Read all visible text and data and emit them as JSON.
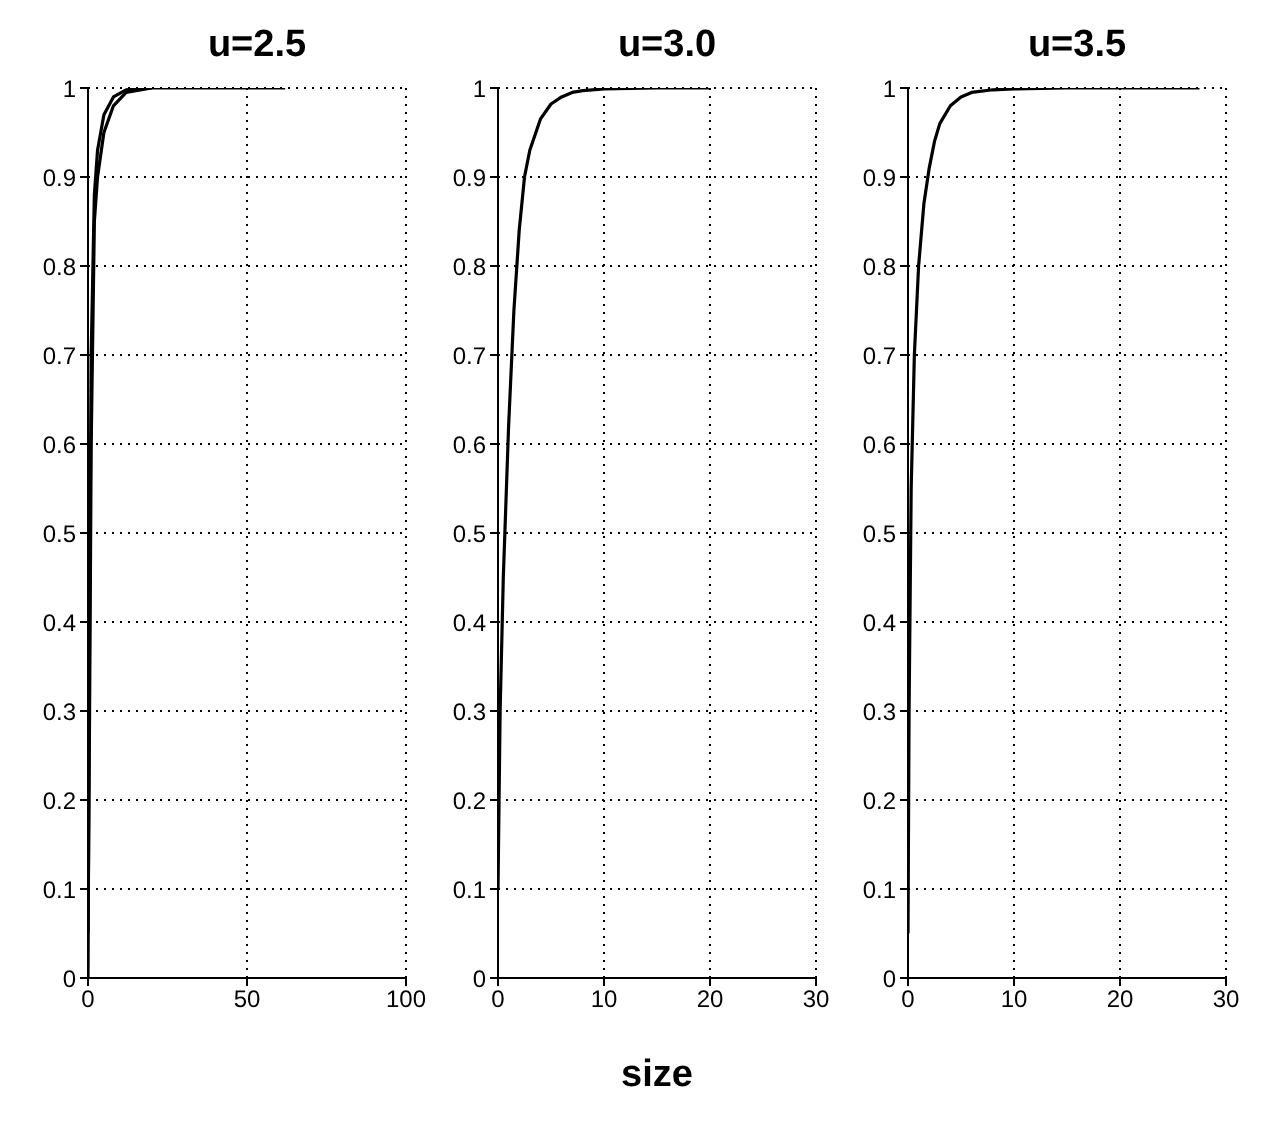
{
  "chart_data": [
    {
      "type": "line",
      "title": "u=2.5",
      "xlim": [
        0,
        100
      ],
      "xticks": [
        0,
        50,
        100
      ],
      "ylim": [
        0,
        1
      ],
      "yticks": [
        0,
        0.1,
        0.2,
        0.3,
        0.4,
        0.5,
        0.6,
        0.7,
        0.8,
        0.9,
        1
      ],
      "grid": true,
      "line_style": "solid",
      "series": [
        {
          "color": "#000000",
          "x": [
            0,
            0.5,
            1,
            2,
            3,
            5,
            8,
            12,
            20,
            62
          ],
          "values": [
            0,
            0.4,
            0.7,
            0.88,
            0.93,
            0.97,
            0.99,
            0.998,
            1,
            1
          ]
        },
        {
          "color": "#000000",
          "x": [
            0,
            0.5,
            1,
            2,
            3,
            5,
            8,
            12,
            20
          ],
          "values": [
            0.05,
            0.3,
            0.6,
            0.85,
            0.9,
            0.95,
            0.98,
            0.995,
            1
          ]
        }
      ]
    },
    {
      "type": "line",
      "title": "u=3.0",
      "xlabel": "size",
      "xlim": [
        0,
        30
      ],
      "xticks": [
        0,
        10,
        20,
        30
      ],
      "ylim": [
        0,
        1
      ],
      "yticks": [
        0,
        0.1,
        0.2,
        0.3,
        0.4,
        0.5,
        0.6,
        0.7,
        0.8,
        0.9,
        1
      ],
      "grid": true,
      "line_style": "solid",
      "series": [
        {
          "color": "#000000",
          "x": [
            0,
            0.2,
            0.5,
            1,
            1.5,
            2,
            2.5,
            3,
            4,
            5,
            6,
            7,
            8,
            10,
            15,
            20
          ],
          "values": [
            0.1,
            0.3,
            0.45,
            0.62,
            0.75,
            0.84,
            0.9,
            0.93,
            0.965,
            0.982,
            0.99,
            0.995,
            0.997,
            0.999,
            1,
            1
          ]
        }
      ]
    },
    {
      "type": "line",
      "title": "u=3.5",
      "xlim": [
        0,
        30
      ],
      "xticks": [
        0,
        10,
        20,
        30
      ],
      "ylim": [
        0,
        1
      ],
      "yticks": [
        0,
        0.1,
        0.2,
        0.3,
        0.4,
        0.5,
        0.6,
        0.7,
        0.8,
        0.9,
        1
      ],
      "grid": true,
      "line_style": "solid",
      "series": [
        {
          "color": "#000000",
          "x": [
            0,
            0.1,
            0.3,
            0.6,
            1,
            1.5,
            2,
            2.5,
            3,
            4,
            5,
            6,
            8,
            10,
            15,
            27.5
          ],
          "values": [
            0.05,
            0.3,
            0.55,
            0.7,
            0.8,
            0.87,
            0.91,
            0.94,
            0.96,
            0.98,
            0.99,
            0.995,
            0.998,
            0.999,
            1,
            1
          ]
        }
      ]
    }
  ]
}
